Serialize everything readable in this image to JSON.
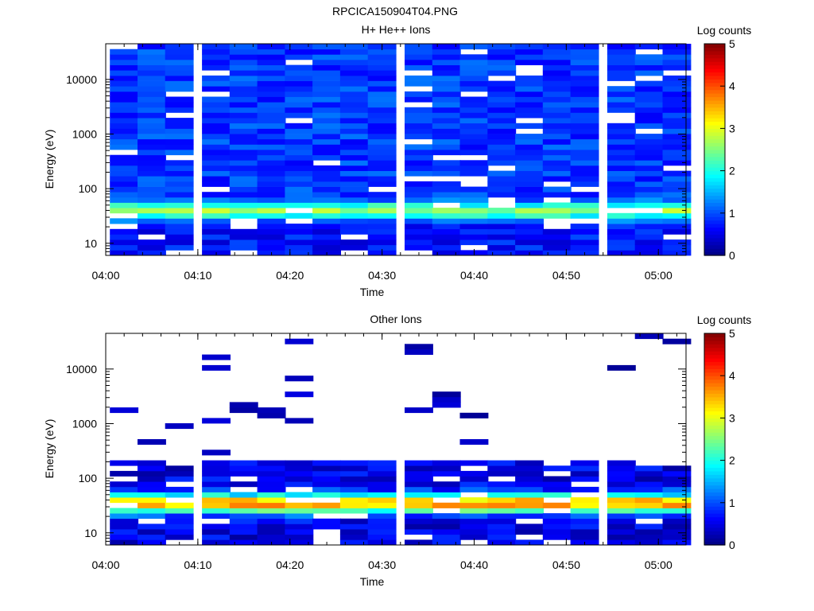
{
  "figure_title": "RPCICA150904T04.PNG",
  "chart_data": [
    {
      "type": "heatmap",
      "title": "H+ He++ Ions",
      "xlabel": "Time",
      "ylabel": "Energy (eV)",
      "colorbar_label": "Log counts",
      "colorbar_ticks": [
        "0",
        "1",
        "2",
        "3",
        "4",
        "5"
      ],
      "colorbar_range": [
        0,
        5
      ],
      "x_range": [
        "04:00",
        "05:03"
      ],
      "x_ticks": [
        "04:00",
        "04:10",
        "04:20",
        "04:30",
        "04:40",
        "04:50",
        "05:00"
      ],
      "y_scale": "log",
      "y_range": [
        6,
        45000
      ],
      "y_ticks": [
        "10",
        "100",
        "1000",
        "10000"
      ],
      "time_bins": [
        "04:02",
        "04:05",
        "04:08",
        "04:12",
        "04:15",
        "04:18",
        "04:21",
        "04:24",
        "04:27",
        "04:30",
        "04:34",
        "04:37",
        "04:40",
        "04:43",
        "04:46",
        "04:49",
        "04:52",
        "04:56",
        "04:59",
        "05:02"
      ],
      "energy_bins": 40,
      "profile": {
        "high_energy_level": 0.9,
        "low_energy_peak_eV": 40,
        "low_energy_peak_level": 2.6
      }
    },
    {
      "type": "heatmap",
      "title": "Other Ions",
      "xlabel": "Time",
      "ylabel": "Energy (eV)",
      "colorbar_label": "Log counts",
      "colorbar_ticks": [
        "0",
        "1",
        "2",
        "3",
        "4",
        "5"
      ],
      "colorbar_range": [
        0,
        5
      ],
      "x_range": [
        "04:00",
        "05:03"
      ],
      "x_ticks": [
        "04:00",
        "04:10",
        "04:20",
        "04:30",
        "04:40",
        "04:50",
        "05:00"
      ],
      "y_scale": "log",
      "y_range": [
        6,
        45000
      ],
      "y_ticks": [
        "10",
        "100",
        "1000",
        "10000"
      ],
      "time_bins": [
        "04:02",
        "04:05",
        "04:08",
        "04:12",
        "04:15",
        "04:18",
        "04:21",
        "04:24",
        "04:27",
        "04:30",
        "04:34",
        "04:37",
        "04:40",
        "04:43",
        "04:46",
        "04:49",
        "04:52",
        "04:56",
        "04:59",
        "05:02"
      ],
      "energy_bins": 40,
      "profile": {
        "low_energy_cutoff_eV": 220,
        "peak_eV": 35,
        "peak_level": 3.6
      }
    }
  ]
}
